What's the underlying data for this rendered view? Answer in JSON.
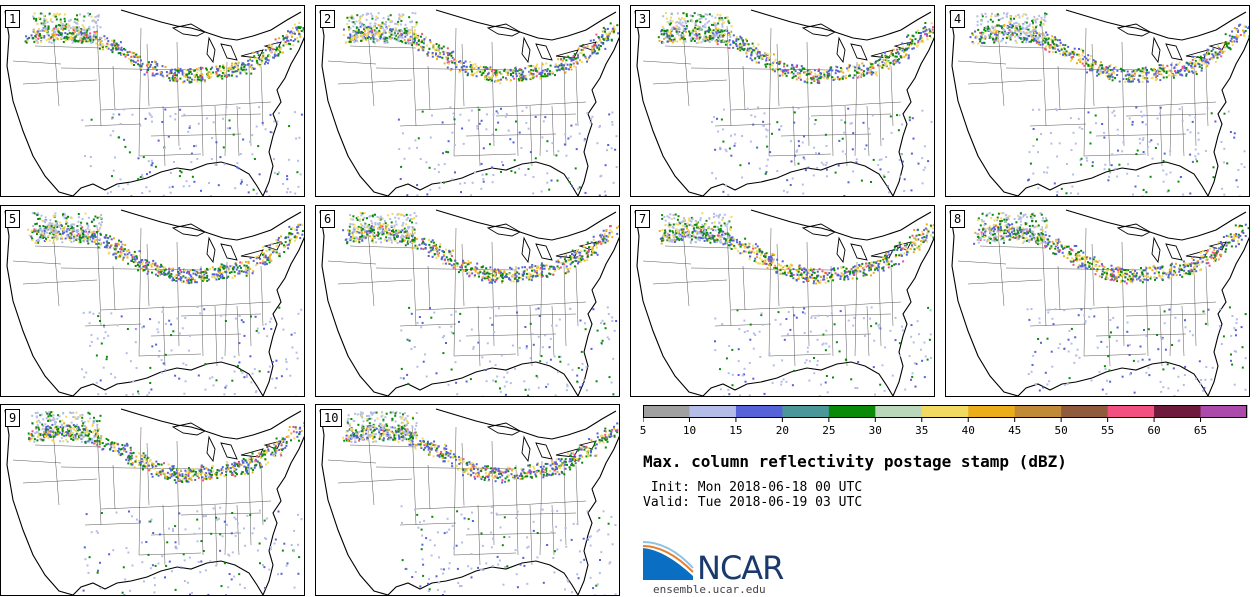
{
  "panels": [
    {
      "label": "1"
    },
    {
      "label": "2"
    },
    {
      "label": "3"
    },
    {
      "label": "4"
    },
    {
      "label": "5"
    },
    {
      "label": "6"
    },
    {
      "label": "7"
    },
    {
      "label": "8"
    },
    {
      "label": "9"
    },
    {
      "label": "10"
    }
  ],
  "colorbar": {
    "ticks": [
      "5",
      "10",
      "15",
      "20",
      "25",
      "30",
      "35",
      "40",
      "45",
      "50",
      "55",
      "60",
      "65"
    ],
    "colors": [
      "#a0a0a0",
      "#b4bde8",
      "#5562d8",
      "#4a9699",
      "#098a09",
      "#b9d7b9",
      "#f0da62",
      "#ecad1b",
      "#c08a36",
      "#8f5b3c",
      "#f25080",
      "#6d1a3d",
      "#ac4aac"
    ]
  },
  "title": "Max. column reflectivity postage stamp (dBZ)",
  "init_text": " Init: Mon 2018-06-18 00 UTC",
  "valid_text": "Valid: Tue 2018-06-19 03 UTC",
  "logo": {
    "word": "NCAR",
    "url": "ensemble.ucar.edu",
    "icon": "ncar-logo-icon"
  }
}
